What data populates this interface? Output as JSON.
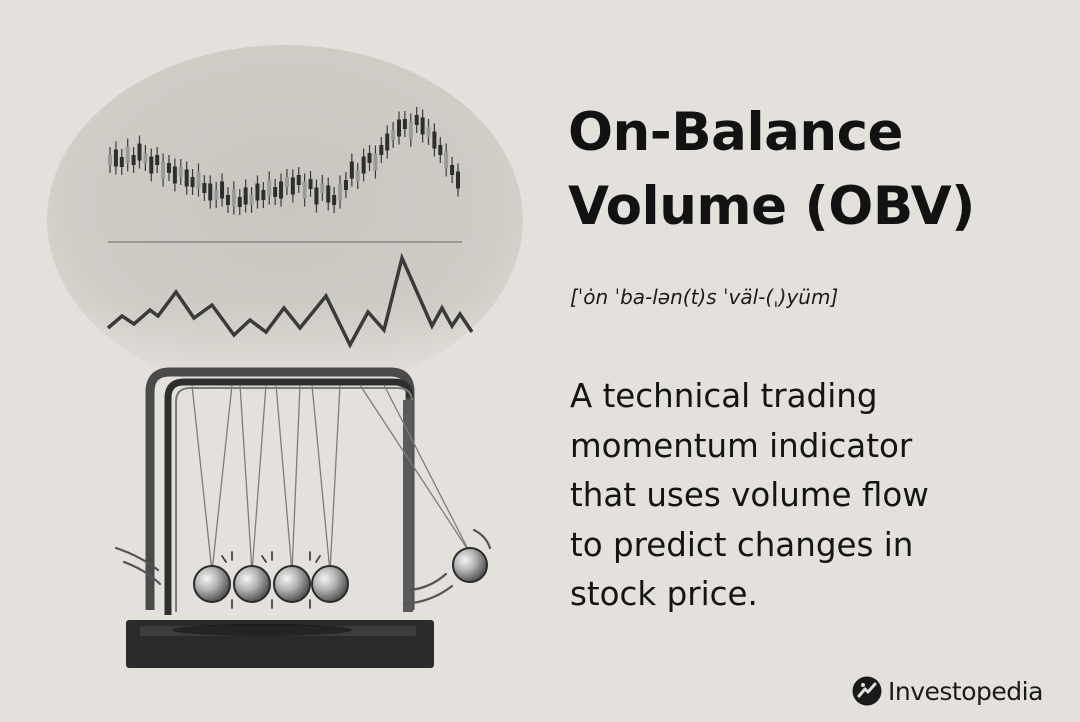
{
  "title": {
    "line1": "On-Balance",
    "line2": "Volume (OBV)"
  },
  "pronunciation": "[ˈȯn ˈba-lən(t)s ˈväl-(ˌ)yüm]",
  "definition": {
    "lines": [
      "A technical trading",
      "momentum indicator",
      "that uses volume flow",
      "to predict changes in",
      "stock price."
    ]
  },
  "brand": {
    "name": "Investopedia",
    "logo_icon": "investopedia-logo-icon"
  },
  "illustration": {
    "subject": "newtons-cradle-with-candlestick-and-obv-charts-icon"
  },
  "colors": {
    "background": "#e4e1dc",
    "text": "#141414",
    "halo": "#cfccc6",
    "cradle_frame": "#3a3a3a",
    "cradle_base": "#262626"
  }
}
